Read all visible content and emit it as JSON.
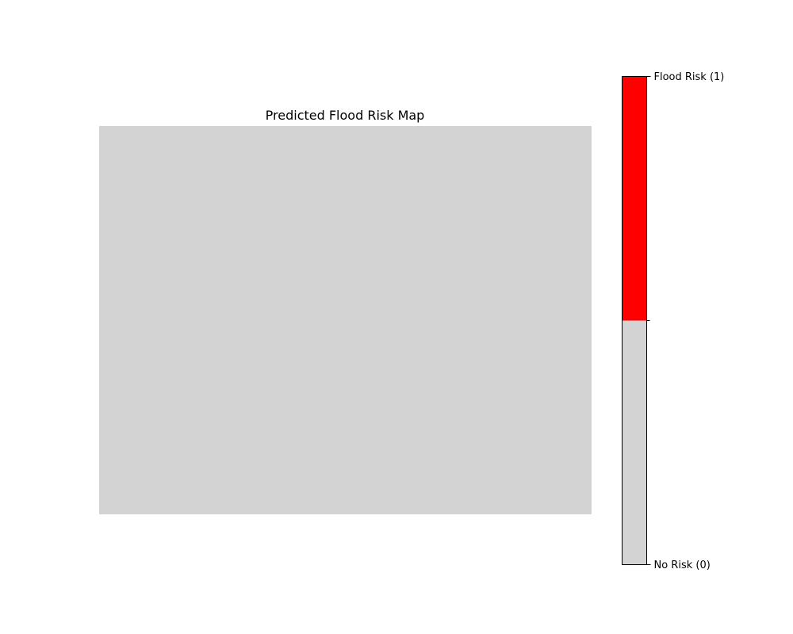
{
  "chart_data": {
    "type": "heatmap",
    "title": "Predicted Flood Risk Map",
    "xlabel": "",
    "ylabel": "",
    "axes_visible": false,
    "grid": false,
    "values": [
      [
        0
      ]
    ],
    "colormap": {
      "type": "discrete",
      "classes": [
        {
          "value": 0,
          "color": "#d3d3d3"
        },
        {
          "value": 1,
          "color": "#ff0000"
        }
      ]
    },
    "colorbar": {
      "placement": "right",
      "range": [
        0,
        1
      ],
      "ticks": [
        {
          "value": 0,
          "label": "No Risk (0)"
        },
        {
          "value": 1,
          "label": "Flood Risk (1)"
        }
      ]
    }
  }
}
